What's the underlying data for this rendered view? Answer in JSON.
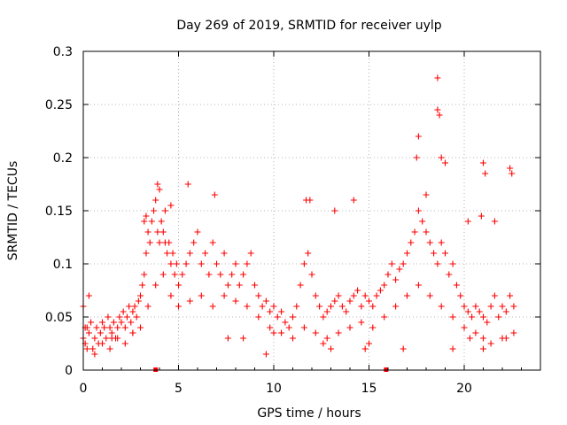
{
  "chart_data": {
    "type": "scatter",
    "title": "Day 269 of 2019, SRMTID for receiver uylp",
    "xlabel": "GPS time / hours",
    "ylabel": "SRMTID / TECUs",
    "xlim": [
      0,
      24
    ],
    "ylim": [
      0,
      0.3
    ],
    "x_ticks": [
      0,
      5,
      10,
      15,
      20
    ],
    "x_tick_labels": [
      "0",
      "5",
      "10",
      "15",
      "20"
    ],
    "y_ticks": [
      0,
      0.05,
      0.1,
      0.15,
      0.2,
      0.25,
      0.3
    ],
    "y_tick_labels": [
      "0",
      "0.05",
      "0.1",
      "0.15",
      "0.2",
      "0.25",
      "0.3"
    ],
    "grid": true,
    "marker": "+",
    "color": "#ff0000",
    "series": [
      {
        "name": "SRMTID",
        "x": [
          0.0,
          0.1,
          0.2,
          0.3,
          0.4,
          0.5,
          0.6,
          0.7,
          0.8,
          0.9,
          1.0,
          1.1,
          1.2,
          1.3,
          1.4,
          1.5,
          1.6,
          1.7,
          1.8,
          1.9,
          2.0,
          2.1,
          2.2,
          2.3,
          2.4,
          2.5,
          2.6,
          2.7,
          2.8,
          2.9,
          3.0,
          3.1,
          3.2,
          3.3,
          3.4,
          3.5,
          3.6,
          3.7,
          3.8,
          3.9,
          4.0,
          4.1,
          4.2,
          4.3,
          4.4,
          4.5,
          4.6,
          4.7,
          4.8,
          4.9,
          5.0,
          5.2,
          5.4,
          5.6,
          5.8,
          6.0,
          6.2,
          6.4,
          6.6,
          6.8,
          7.0,
          7.2,
          7.4,
          7.6,
          7.8,
          8.0,
          8.2,
          8.4,
          8.6,
          8.8,
          9.0,
          9.2,
          9.4,
          9.6,
          9.8,
          10.0,
          10.2,
          10.4,
          10.6,
          10.8,
          11.0,
          11.2,
          11.4,
          11.6,
          11.8,
          12.0,
          12.2,
          12.4,
          12.6,
          12.8,
          13.0,
          13.2,
          13.4,
          13.6,
          13.8,
          14.0,
          14.2,
          14.4,
          14.6,
          14.8,
          15.0,
          15.2,
          15.4,
          15.6,
          15.8,
          16.0,
          16.2,
          16.4,
          16.6,
          16.8,
          17.0,
          17.2,
          17.4,
          17.6,
          17.8,
          18.0,
          18.2,
          18.4,
          18.6,
          18.8,
          19.0,
          19.2,
          19.4,
          19.6,
          19.8,
          20.0,
          20.2,
          20.4,
          20.6,
          20.8,
          21.0,
          21.2,
          21.4,
          21.6,
          21.8,
          22.0,
          22.2,
          22.4,
          22.6,
          0.2,
          0.6,
          1.0,
          1.4,
          1.8,
          2.2,
          2.6,
          3.0,
          3.4,
          3.8,
          4.2,
          4.6,
          5.0,
          5.6,
          6.2,
          6.8,
          7.4,
          8.0,
          8.6,
          9.2,
          9.8,
          10.4,
          11.0,
          11.6,
          12.2,
          12.8,
          13.4,
          14.0,
          14.6,
          15.2,
          15.8,
          16.4,
          17.0,
          17.6,
          18.2,
          18.8,
          19.4,
          20.0,
          20.6,
          21.0,
          21.4,
          22.0,
          22.6,
          18.6,
          18.6,
          18.7,
          17.6,
          17.5,
          18.8,
          19.0,
          21.0,
          21.1,
          22.4,
          22.5,
          5.5,
          6.9,
          11.7,
          11.9,
          3.9,
          4.0,
          4.6,
          14.2,
          3.3,
          3.2,
          4.3,
          13.2,
          18.0,
          20.2,
          21.6,
          20.9,
          10.0,
          8.4,
          12.6,
          16.8,
          13.0,
          9.6,
          14.8,
          21.0,
          22.2,
          0.3,
          0.0,
          0.1,
          1.5,
          2.6,
          7.6,
          15.0,
          19.4,
          20.3
        ],
        "y": [
          0.03,
          0.025,
          0.04,
          0.035,
          0.045,
          0.02,
          0.03,
          0.04,
          0.025,
          0.035,
          0.045,
          0.04,
          0.03,
          0.05,
          0.04,
          0.035,
          0.045,
          0.03,
          0.04,
          0.05,
          0.045,
          0.055,
          0.04,
          0.05,
          0.06,
          0.045,
          0.055,
          0.06,
          0.05,
          0.065,
          0.07,
          0.08,
          0.09,
          0.11,
          0.13,
          0.12,
          0.14,
          0.15,
          0.16,
          0.13,
          0.12,
          0.14,
          0.13,
          0.12,
          0.11,
          0.12,
          0.1,
          0.11,
          0.09,
          0.1,
          0.08,
          0.09,
          0.1,
          0.11,
          0.12,
          0.13,
          0.1,
          0.11,
          0.09,
          0.12,
          0.1,
          0.09,
          0.11,
          0.08,
          0.09,
          0.1,
          0.08,
          0.09,
          0.1,
          0.11,
          0.08,
          0.07,
          0.06,
          0.065,
          0.055,
          0.06,
          0.05,
          0.055,
          0.045,
          0.04,
          0.05,
          0.06,
          0.08,
          0.1,
          0.11,
          0.09,
          0.07,
          0.06,
          0.05,
          0.055,
          0.06,
          0.065,
          0.07,
          0.06,
          0.055,
          0.065,
          0.07,
          0.075,
          0.06,
          0.07,
          0.065,
          0.06,
          0.07,
          0.075,
          0.08,
          0.09,
          0.1,
          0.085,
          0.095,
          0.1,
          0.11,
          0.12,
          0.13,
          0.15,
          0.14,
          0.13,
          0.12,
          0.11,
          0.1,
          0.12,
          0.11,
          0.09,
          0.1,
          0.08,
          0.07,
          0.06,
          0.055,
          0.05,
          0.06,
          0.055,
          0.05,
          0.045,
          0.06,
          0.07,
          0.05,
          0.06,
          0.055,
          0.07,
          0.06,
          0.02,
          0.015,
          0.025,
          0.02,
          0.03,
          0.025,
          0.035,
          0.04,
          0.06,
          0.08,
          0.09,
          0.07,
          0.06,
          0.065,
          0.07,
          0.06,
          0.07,
          0.065,
          0.06,
          0.05,
          0.04,
          0.035,
          0.03,
          0.04,
          0.035,
          0.03,
          0.035,
          0.04,
          0.045,
          0.04,
          0.05,
          0.06,
          0.07,
          0.08,
          0.07,
          0.06,
          0.05,
          0.04,
          0.035,
          0.03,
          0.025,
          0.03,
          0.035,
          0.275,
          0.245,
          0.24,
          0.22,
          0.2,
          0.2,
          0.195,
          0.195,
          0.185,
          0.19,
          0.185,
          0.175,
          0.165,
          0.16,
          0.16,
          0.175,
          0.17,
          0.155,
          0.16,
          0.145,
          0.14,
          0.15,
          0.15,
          0.165,
          0.14,
          0.14,
          0.145,
          0.035,
          0.03,
          0.025,
          0.02,
          0.02,
          0.015,
          0.02,
          0.02,
          0.03,
          0.07,
          0.06,
          0.04,
          0.03,
          0.035,
          0.03,
          0.025,
          0.02,
          0.03
        ],
        "x_bad": [
          3.8,
          15.9
        ],
        "y_bad": [
          0,
          0
        ]
      }
    ]
  }
}
